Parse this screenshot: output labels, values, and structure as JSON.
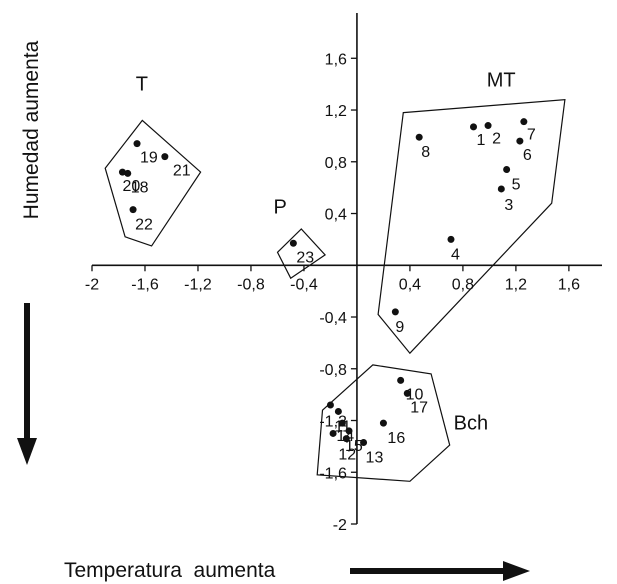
{
  "chart_data": {
    "type": "scatter",
    "xlabel": "Temperatura  aumenta",
    "ylabel": "Humedad  aumenta",
    "xlim": [
      -2,
      1.85
    ],
    "ylim": [
      -2,
      1.95
    ],
    "x_ticks": [
      {
        "value": -2,
        "label": "-2"
      },
      {
        "value": -1.6,
        "label": "-1,6"
      },
      {
        "value": -1.2,
        "label": "-1,2"
      },
      {
        "value": -0.8,
        "label": "-0,8"
      },
      {
        "value": -0.4,
        "label": "-0,4"
      },
      {
        "value": 0.4,
        "label": "0,4"
      },
      {
        "value": 0.8,
        "label": "0,8"
      },
      {
        "value": 1.2,
        "label": "1,2"
      },
      {
        "value": 1.6,
        "label": "1,6"
      }
    ],
    "y_ticks": [
      {
        "value": 1.6,
        "label": "1,6"
      },
      {
        "value": 1.2,
        "label": "1,2"
      },
      {
        "value": 0.8,
        "label": "0,8"
      },
      {
        "value": 0.4,
        "label": "0,4"
      },
      {
        "value": -0.4,
        "label": "-0,4"
      },
      {
        "value": -0.8,
        "label": "-0,8"
      },
      {
        "value": -1.2,
        "label": "-1,2"
      },
      {
        "value": -1.6,
        "label": "-1,6"
      },
      {
        "value": -2,
        "label": "-2"
      }
    ],
    "points": [
      {
        "label": "1",
        "x": 0.88,
        "y": 1.07
      },
      {
        "label": "2",
        "x": 0.99,
        "y": 1.08
      },
      {
        "label": "3",
        "x": 1.09,
        "y": 0.59
      },
      {
        "label": "4",
        "x": 0.71,
        "y": 0.2
      },
      {
        "label": "5",
        "x": 1.13,
        "y": 0.74
      },
      {
        "label": "6",
        "x": 1.23,
        "y": 0.96
      },
      {
        "label": "7",
        "x": 1.26,
        "y": 1.11
      },
      {
        "label": "8",
        "x": 0.47,
        "y": 0.99
      },
      {
        "label": "9",
        "x": 0.29,
        "y": -0.36
      },
      {
        "label": "10",
        "x": 0.33,
        "y": -0.89
      },
      {
        "label": "11",
        "x": -0.14,
        "y": -1.13
      },
      {
        "label": "12",
        "x": -0.08,
        "y": -1.34
      },
      {
        "label": "13",
        "x": 0.05,
        "y": -1.37
      },
      {
        "label": "14",
        "x": -0.11,
        "y": -1.22
      },
      {
        "label": "15",
        "x": -0.06,
        "y": -1.28
      },
      {
        "label": "16",
        "x": 0.2,
        "y": -1.22
      },
      {
        "label": "17",
        "x": 0.38,
        "y": -0.99
      },
      {
        "label": "18",
        "x": -1.73,
        "y": 0.71
      },
      {
        "label": "19",
        "x": -1.66,
        "y": 0.94
      },
      {
        "label": "20",
        "x": -1.77,
        "y": 0.72
      },
      {
        "label": "21",
        "x": -1.45,
        "y": 0.84
      },
      {
        "label": "22",
        "x": -1.69,
        "y": 0.43
      },
      {
        "label": "23",
        "x": -0.48,
        "y": 0.17
      },
      {
        "label": "",
        "x": -0.18,
        "y": -1.3
      },
      {
        "label": "",
        "x": -0.2,
        "y": -1.08
      }
    ],
    "groups": [
      {
        "name": "T",
        "hull": [
          [
            -1.9,
            0.75
          ],
          [
            -1.62,
            1.12
          ],
          [
            -1.18,
            0.72
          ],
          [
            -1.55,
            0.15
          ],
          [
            -1.75,
            0.22
          ]
        ]
      },
      {
        "name": "P",
        "hull": [
          [
            -0.6,
            0.1
          ],
          [
            -0.42,
            0.28
          ],
          [
            -0.24,
            0.08
          ],
          [
            -0.5,
            -0.1
          ]
        ]
      },
      {
        "name": "MT",
        "hull": [
          [
            0.35,
            1.18
          ],
          [
            1.57,
            1.28
          ],
          [
            1.47,
            0.48
          ],
          [
            0.4,
            -0.68
          ],
          [
            0.16,
            -0.38
          ]
        ]
      },
      {
        "name": "Bch",
        "hull": [
          [
            0.12,
            -0.77
          ],
          [
            0.56,
            -0.84
          ],
          [
            0.7,
            -1.39
          ],
          [
            0.4,
            -1.67
          ],
          [
            -0.3,
            -1.62
          ],
          [
            -0.26,
            -1.12
          ]
        ]
      }
    ]
  }
}
